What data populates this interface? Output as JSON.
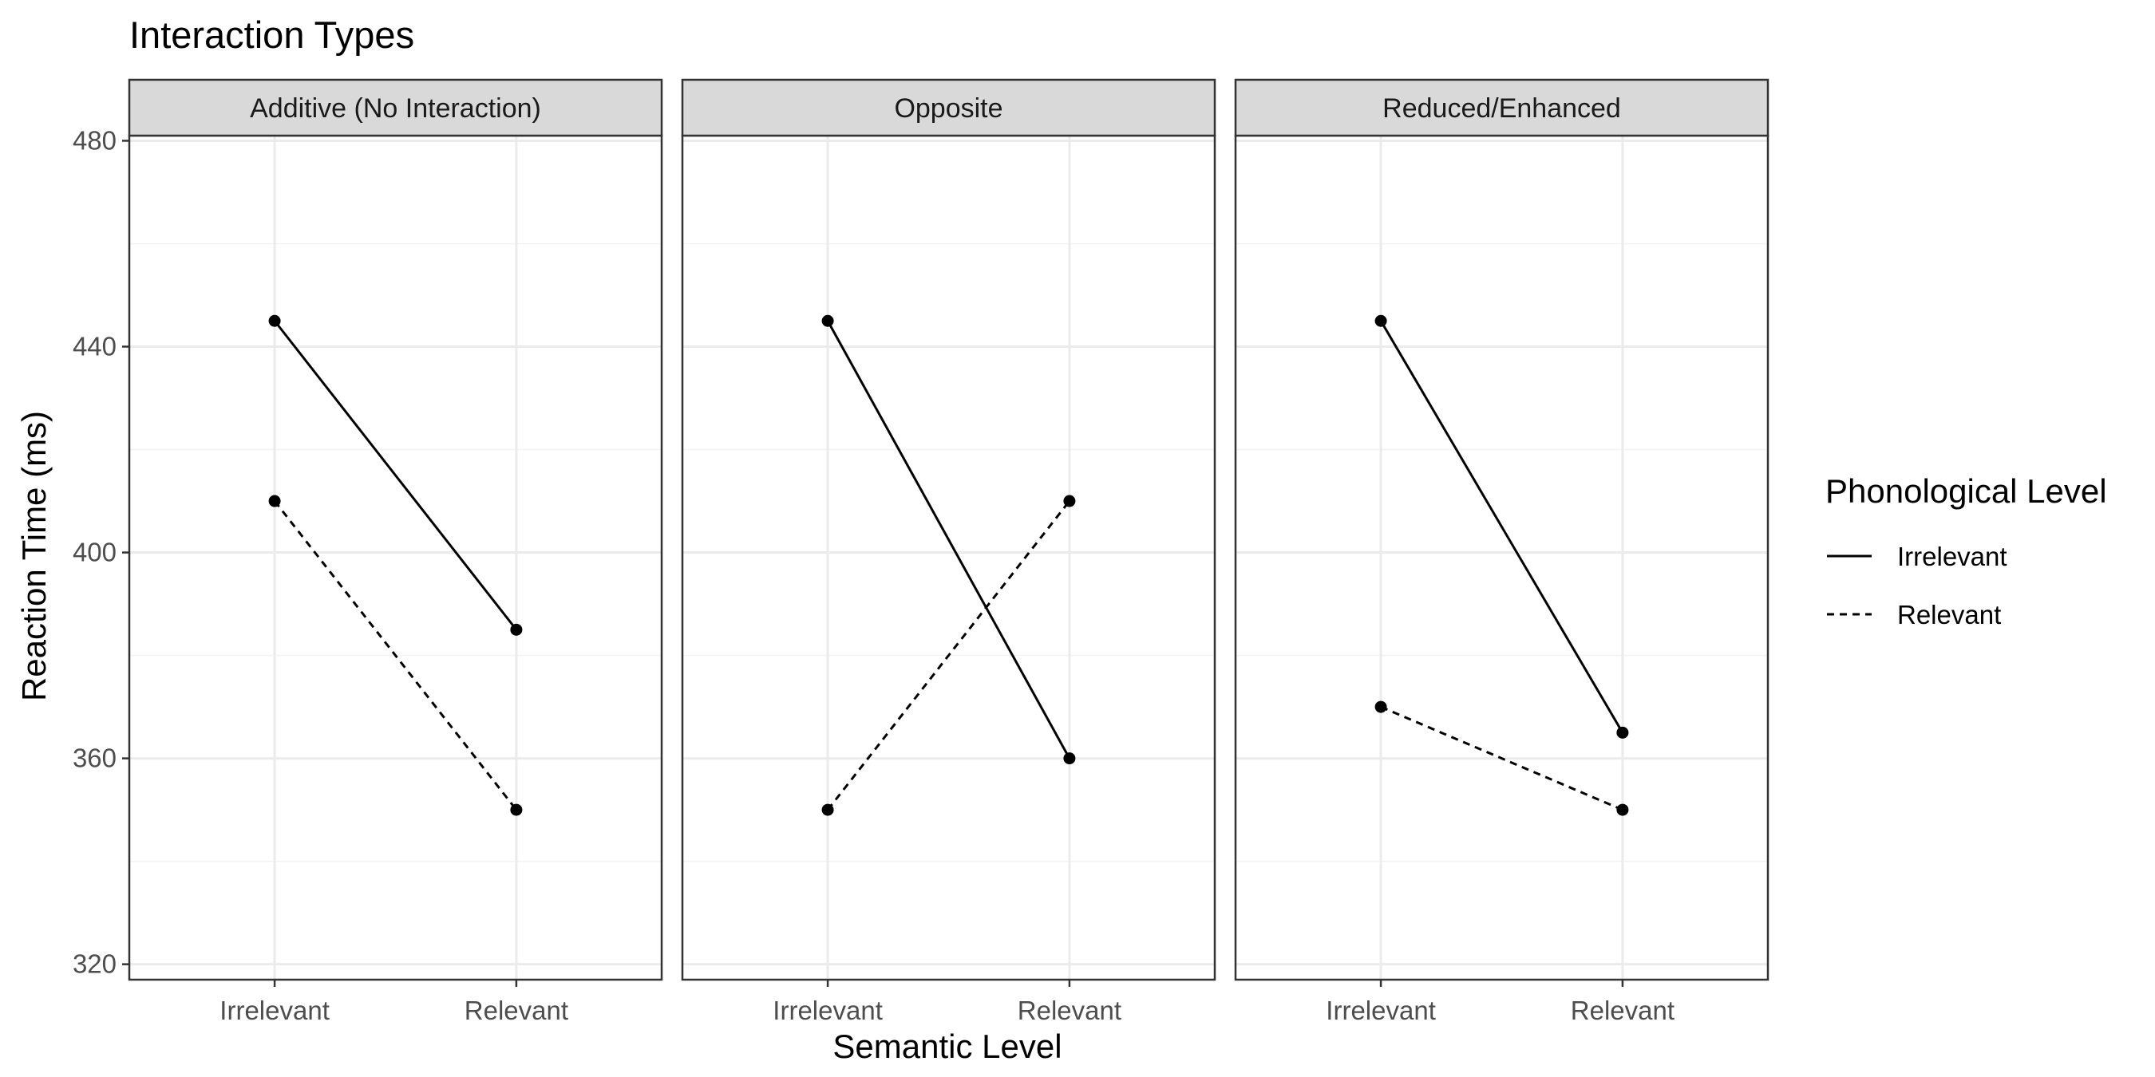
{
  "chart_data": {
    "type": "line",
    "title": "Interaction Types",
    "xlabel": "Semantic Level",
    "ylabel": "Reaction Time (ms)",
    "categories": [
      "Irrelevant",
      "Relevant"
    ],
    "ylim": [
      317,
      481
    ],
    "yticks": [
      320,
      360,
      400,
      440,
      480
    ],
    "grid": true,
    "legend": {
      "title": "Phonological Level",
      "position": "right"
    },
    "panels": [
      {
        "label": "Additive (No Interaction)",
        "series": [
          {
            "name": "Irrelevant",
            "linetype": "solid",
            "values": [
              445,
              385
            ]
          },
          {
            "name": "Relevant",
            "linetype": "dashed",
            "values": [
              410,
              350
            ]
          }
        ]
      },
      {
        "label": "Opposite",
        "series": [
          {
            "name": "Irrelevant",
            "linetype": "solid",
            "values": [
              445,
              360
            ]
          },
          {
            "name": "Relevant",
            "linetype": "dashed",
            "values": [
              350,
              410
            ]
          }
        ]
      },
      {
        "label": "Reduced/Enhanced",
        "series": [
          {
            "name": "Irrelevant",
            "linetype": "solid",
            "values": [
              445,
              365
            ]
          },
          {
            "name": "Relevant",
            "linetype": "dashed",
            "values": [
              370,
              350
            ]
          }
        ]
      }
    ],
    "colors": {
      "line": "#000000",
      "strip_fill": "#d9d9d9",
      "grid_major": "#ebebeb",
      "grid_minor": "#f2f2f2",
      "border": "#333333"
    }
  }
}
